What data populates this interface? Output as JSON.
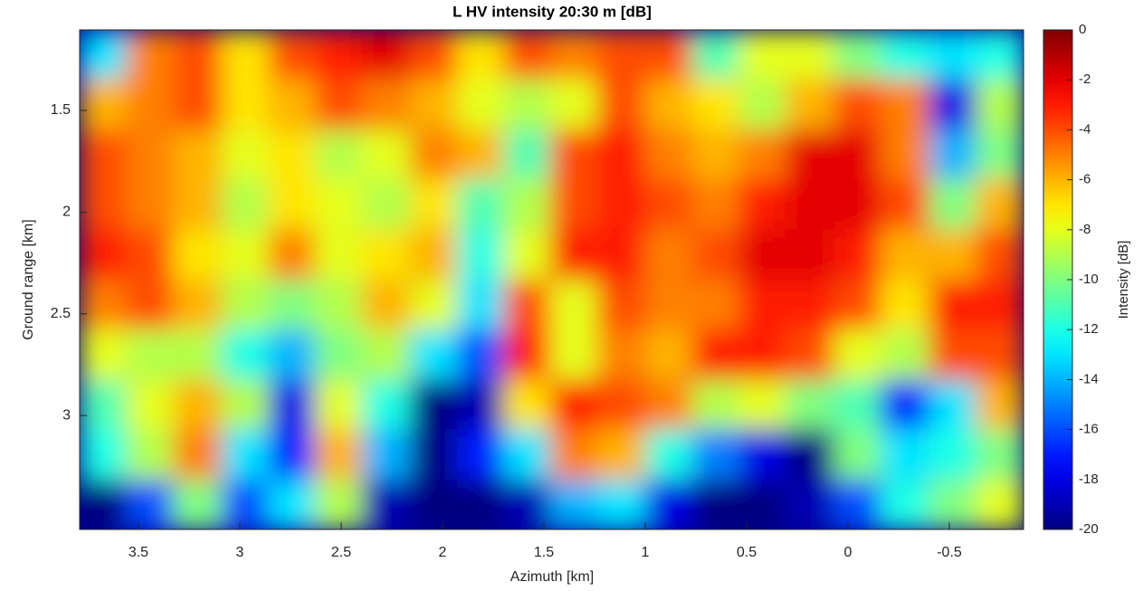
{
  "chart_data": {
    "type": "heatmap",
    "title": "L HV intensity 20:30 m [dB]",
    "xlabel": "Azimuth [km]",
    "ylabel": "Ground range [km]",
    "colorbar_label": "Intensity [dB]",
    "colormap": "jet",
    "x": [
      3.67,
      3.44,
      3.21,
      2.97,
      2.74,
      2.51,
      2.28,
      2.04,
      1.81,
      1.58,
      1.35,
      1.12,
      0.88,
      0.65,
      0.42,
      0.19,
      -0.05,
      -0.28,
      -0.52,
      -0.75
    ],
    "y": [
      1.23,
      1.47,
      1.72,
      1.96,
      2.21,
      2.46,
      2.7,
      2.95,
      3.19,
      3.44
    ],
    "z": [
      [
        -13,
        -5,
        -4,
        -7,
        -4,
        -3,
        -2,
        -4,
        -7,
        -4,
        -5,
        -4,
        -4,
        -11,
        -8,
        -8,
        -10,
        -12,
        -13,
        -12
      ],
      [
        -6,
        -5,
        -4,
        -7,
        -6,
        -4,
        -5,
        -6,
        -8,
        -9,
        -8,
        -4,
        -6,
        -7,
        -9,
        -6,
        -4,
        -5,
        -18,
        -9
      ],
      [
        -4,
        -5,
        -6,
        -8,
        -7,
        -9,
        -8,
        -5,
        -6,
        -11,
        -4,
        -3,
        -5,
        -6,
        -5,
        -2,
        -2,
        -5,
        -14,
        -10
      ],
      [
        -4,
        -5,
        -6,
        -9,
        -7,
        -8,
        -9,
        -7,
        -11,
        -9,
        -4,
        -3,
        -4,
        -5,
        -3,
        -2,
        -2,
        -4,
        -10,
        -6
      ],
      [
        -3,
        -4,
        -7,
        -8,
        -5,
        -8,
        -7,
        -6,
        -12,
        -8,
        -3,
        -3,
        -5,
        -4,
        -2,
        -2,
        -3,
        -6,
        -6,
        -4
      ],
      [
        -5,
        -4,
        -6,
        -9,
        -10,
        -9,
        -6,
        -8,
        -13,
        -4,
        -8,
        -4,
        -5,
        -5,
        -3,
        -3,
        -4,
        -7,
        -3,
        -3
      ],
      [
        -8,
        -9,
        -9,
        -12,
        -14,
        -10,
        -9,
        -13,
        -16,
        -3,
        -8,
        -5,
        -6,
        -3,
        -3,
        -4,
        -8,
        -9,
        -4,
        -4
      ],
      [
        -11,
        -8,
        -6,
        -9,
        -18,
        -8,
        -12,
        -20,
        -19,
        -7,
        -3,
        -4,
        -5,
        -9,
        -8,
        -10,
        -11,
        -17,
        -13,
        -6
      ],
      [
        -12,
        -9,
        -5,
        -13,
        -17,
        -6,
        -14,
        -20,
        -17,
        -13,
        -5,
        -6,
        -12,
        -15,
        -18,
        -20,
        -10,
        -13,
        -12,
        -10
      ],
      [
        -20,
        -16,
        -10,
        -16,
        -13,
        -9,
        -19,
        -20,
        -20,
        -19,
        -14,
        -13,
        -18,
        -20,
        -20,
        -19,
        -16,
        -12,
        -10,
        -8
      ]
    ],
    "xlim": [
      3.79,
      -0.866
    ],
    "xticks": [
      3.5,
      3,
      2.5,
      2,
      1.5,
      1,
      0.5,
      0,
      -0.5
    ],
    "ylim": [
      1.104,
      3.56
    ],
    "yticks": [
      1.5,
      2,
      2.5,
      3
    ],
    "clim": [
      -20,
      0
    ],
    "cticks": [
      0,
      -2,
      -4,
      -6,
      -8,
      -10,
      -12,
      -14,
      -16,
      -18,
      -20
    ]
  }
}
